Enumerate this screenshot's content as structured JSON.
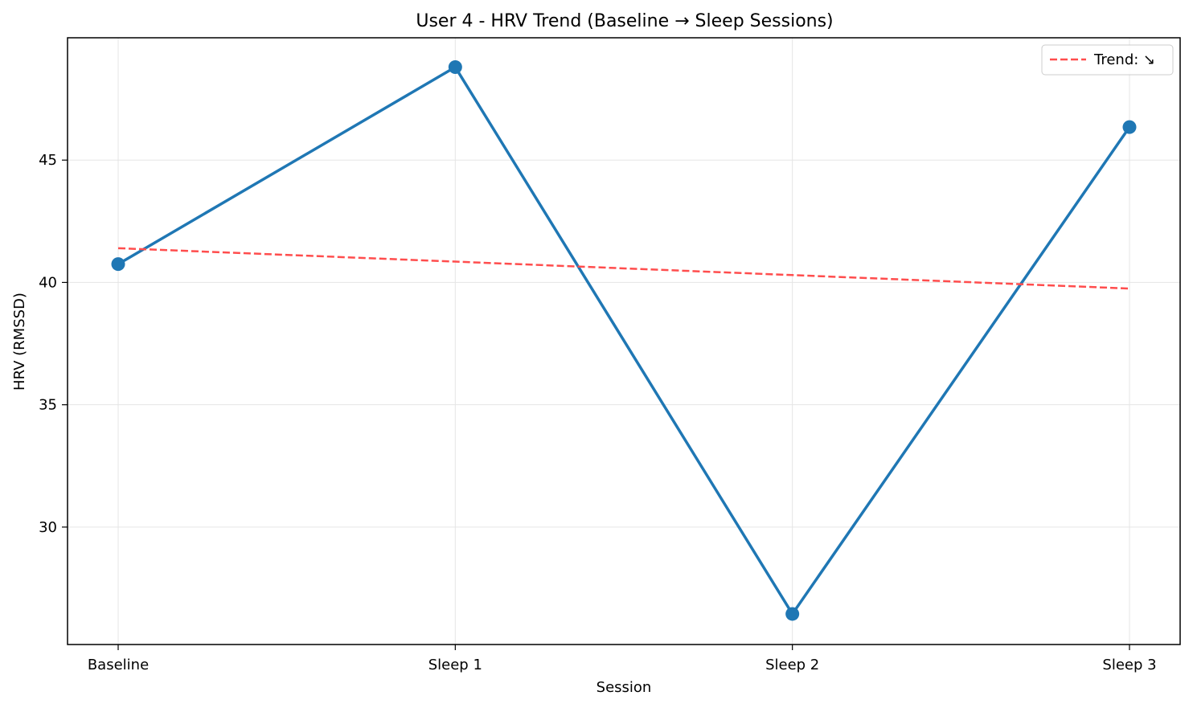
{
  "chart_data": {
    "type": "line",
    "title": "User 4 - HRV Trend (Baseline → Sleep Sessions)",
    "xlabel": "Session",
    "ylabel": "HRV (RMSSD)",
    "categories": [
      "Baseline",
      "Sleep 1",
      "Sleep 2",
      "Sleep 3"
    ],
    "series": [
      {
        "values": [
          40.75,
          48.8,
          26.45,
          46.35
        ],
        "color": "#1f77b4",
        "marker": "circle"
      },
      {
        "name": "Trend: ↘",
        "values": [
          41.4,
          40.85,
          40.3,
          39.75
        ],
        "color": "#ff4d4d",
        "style": "dashed"
      }
    ],
    "ylim": [
      25.2,
      50.0
    ],
    "yticks": [
      30,
      35,
      40,
      45
    ],
    "grid": true,
    "legend_position": "top-right"
  }
}
